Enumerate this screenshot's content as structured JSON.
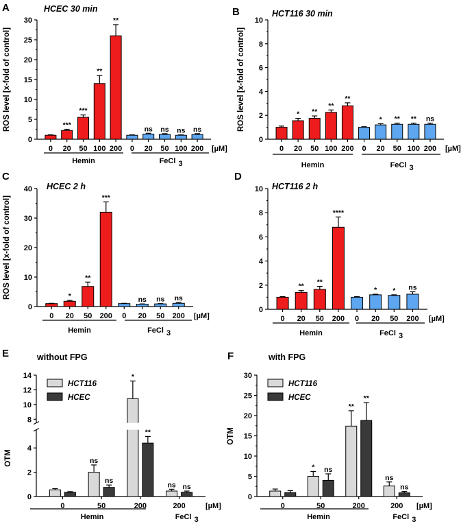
{
  "colors": {
    "hemin_bar": "#ee1c1c",
    "fecl3_bar": "#5ea6ef",
    "hct116_bar": "#d9d9d9",
    "hcec_bar": "#3a3a3a",
    "axis": "#000000"
  },
  "chart_data": [
    {
      "panel": "A",
      "title": "HCEC 30 min",
      "type": "bar",
      "ylabel": "ROS level [x-fold of control]",
      "ylim": [
        0,
        30
      ],
      "yticks": [
        0,
        5,
        10,
        15,
        20,
        25,
        30
      ],
      "categories": [
        "0",
        "20",
        "50",
        "100",
        "200",
        "0",
        "20",
        "50",
        "100",
        "200"
      ],
      "groups": [
        "Hemin",
        "Hemin",
        "Hemin",
        "Hemin",
        "Hemin",
        "FeCl3",
        "FeCl3",
        "FeCl3",
        "FeCl3",
        "FeCl3"
      ],
      "values": [
        1.0,
        2.2,
        5.5,
        14.0,
        26.0,
        1.0,
        1.3,
        1.2,
        1.0,
        1.2
      ],
      "errors": [
        0.1,
        0.3,
        0.6,
        2.0,
        2.8,
        0.1,
        0.2,
        0.2,
        0.1,
        0.2
      ],
      "significance": [
        "",
        "***",
        "***",
        "**",
        "**",
        "",
        "ns",
        "ns",
        "ns",
        "ns"
      ],
      "unit": "[µM]",
      "group_labels": [
        "Hemin",
        "FeCl",
        "3"
      ]
    },
    {
      "panel": "B",
      "title": "HCT116 30 min",
      "type": "bar",
      "ylabel": "ROS level [x-fold of control]",
      "ylim": [
        0,
        10
      ],
      "yticks": [
        0,
        2,
        4,
        6,
        8,
        10
      ],
      "categories": [
        "0",
        "20",
        "50",
        "100",
        "200",
        "0",
        "20",
        "50",
        "100",
        "200"
      ],
      "groups": [
        "Hemin",
        "Hemin",
        "Hemin",
        "Hemin",
        "Hemin",
        "FeCl3",
        "FeCl3",
        "FeCl3",
        "FeCl3",
        "FeCl3"
      ],
      "values": [
        1.0,
        1.55,
        1.75,
        2.25,
        2.8,
        1.0,
        1.2,
        1.25,
        1.25,
        1.25
      ],
      "errors": [
        0.1,
        0.2,
        0.2,
        0.2,
        0.25,
        0.05,
        0.1,
        0.1,
        0.1,
        0.1
      ],
      "significance": [
        "",
        "*",
        "**",
        "**",
        "**",
        "",
        "*",
        "**",
        "**",
        "ns"
      ],
      "unit": "[µM]",
      "group_labels": [
        "Hemin",
        "FeCl",
        "3"
      ]
    },
    {
      "panel": "C",
      "title": "HCEC 2 h",
      "type": "bar",
      "ylabel": "ROS level [x-fold of control]",
      "ylim": [
        0,
        40
      ],
      "yticks": [
        0,
        10,
        20,
        30,
        40
      ],
      "categories": [
        "0",
        "20",
        "50",
        "200",
        "0",
        "20",
        "50",
        "200"
      ],
      "groups": [
        "Hemin",
        "Hemin",
        "Hemin",
        "Hemin",
        "FeCl3",
        "FeCl3",
        "FeCl3",
        "FeCl3"
      ],
      "values": [
        1.0,
        1.8,
        6.8,
        32.0,
        1.0,
        0.8,
        0.9,
        1.1
      ],
      "errors": [
        0.1,
        0.3,
        1.5,
        3.5,
        0.1,
        0.1,
        0.1,
        0.3
      ],
      "significance": [
        "",
        "*",
        "**",
        "***",
        "",
        "ns",
        "ns",
        "ns"
      ],
      "unit": "[µM]",
      "group_labels": [
        "Hemin",
        "FeCl",
        "3"
      ]
    },
    {
      "panel": "D",
      "title": "HCT116 2 h",
      "type": "bar",
      "ylabel": "",
      "ylim": [
        0,
        10
      ],
      "yticks": [
        0,
        2,
        4,
        6,
        8,
        10
      ],
      "categories": [
        "0",
        "20",
        "50",
        "200",
        "0",
        "20",
        "50",
        "200"
      ],
      "groups": [
        "Hemin",
        "Hemin",
        "Hemin",
        "Hemin",
        "FeCl3",
        "FeCl3",
        "FeCl3",
        "FeCl3"
      ],
      "values": [
        1.0,
        1.4,
        1.65,
        6.8,
        1.0,
        1.2,
        1.15,
        1.25
      ],
      "errors": [
        0.05,
        0.15,
        0.25,
        0.85,
        0.05,
        0.05,
        0.05,
        0.2
      ],
      "significance": [
        "",
        "**",
        "**",
        "****",
        "",
        "*",
        "*",
        "ns"
      ],
      "unit": "[µM]",
      "group_labels": [
        "Hemin",
        "FeCl",
        "3"
      ]
    },
    {
      "panel": "E",
      "title": "without FPG",
      "type": "bar",
      "ylabel": "OTM",
      "ylim": [
        0,
        14
      ],
      "axis_break": [
        5.5,
        7.5
      ],
      "yticks": [
        0,
        2,
        4,
        8,
        10,
        12,
        14
      ],
      "categories": [
        "0",
        "50",
        "200",
        "200"
      ],
      "groups": [
        "Hemin",
        "Hemin",
        "Hemin",
        "FeCl3"
      ],
      "legend": [
        "HCT116",
        "HCEC"
      ],
      "series": [
        {
          "name": "HCT116",
          "values": [
            0.55,
            2.0,
            10.8,
            0.45
          ],
          "errors": [
            0.1,
            0.6,
            2.4,
            0.15
          ],
          "significance": [
            "",
            "ns",
            "*",
            "ns"
          ]
        },
        {
          "name": "HCEC",
          "values": [
            0.35,
            0.75,
            4.4,
            0.35
          ],
          "errors": [
            0.05,
            0.2,
            0.55,
            0.1
          ],
          "significance": [
            "",
            "ns",
            "**",
            "ns"
          ]
        }
      ],
      "unit": "[µM]",
      "group_labels": [
        "Hemin",
        "FeCl",
        "3"
      ]
    },
    {
      "panel": "F",
      "title": "with FPG",
      "type": "bar",
      "ylabel": "OTM",
      "ylim": [
        0,
        30
      ],
      "yticks": [
        0,
        5,
        10,
        15,
        20,
        25,
        30
      ],
      "categories": [
        "0",
        "50",
        "200",
        "200"
      ],
      "groups": [
        "Hemin",
        "Hemin",
        "Hemin",
        "FeCl3"
      ],
      "legend": [
        "HCT116",
        "HCEC"
      ],
      "series": [
        {
          "name": "HCT116",
          "values": [
            1.35,
            5.0,
            17.4,
            2.6
          ],
          "errors": [
            0.5,
            1.2,
            3.8,
            1.0
          ],
          "significance": [
            "",
            "*",
            "**",
            "ns"
          ]
        },
        {
          "name": "HCEC",
          "values": [
            0.95,
            4.0,
            18.8,
            0.9
          ],
          "errors": [
            0.5,
            1.6,
            4.4,
            0.35
          ],
          "significance": [
            "",
            "ns",
            "**",
            "ns"
          ]
        }
      ],
      "unit": "[µM]",
      "group_labels": [
        "Hemin",
        "FeCl",
        "3"
      ]
    }
  ]
}
